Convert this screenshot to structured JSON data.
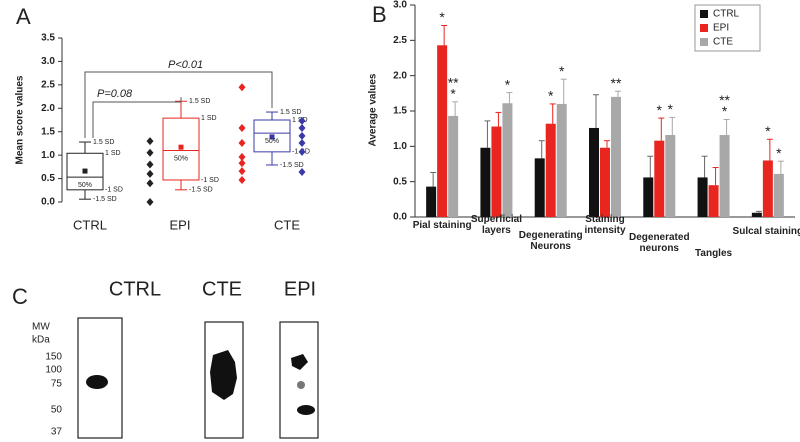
{
  "panels": [
    "A",
    "B",
    "C"
  ],
  "chart_data": [
    {
      "type": "box",
      "ylabel": "Mean score values",
      "ylim": [
        0,
        3.5
      ],
      "yticks": [
        {
          "value": 0,
          "label": "0.0"
        },
        {
          "value": 0.5,
          "label": "0.5"
        },
        {
          "value": 1,
          "label": "1.0"
        },
        {
          "value": 1.5,
          "label": "1.5"
        },
        {
          "value": 2,
          "label": "2.0"
        },
        {
          "value": 2.5,
          "label": "2.5"
        },
        {
          "value": 3,
          "label": "3.0"
        },
        {
          "value": 3.5,
          "label": "3.5"
        }
      ],
      "categories": [
        "CTRL",
        "EPI",
        "CTE"
      ],
      "box_labels": [
        "1.5 SD",
        "1 SD",
        "50%",
        "-1 SD",
        "-1.5 SD"
      ],
      "boxes": [
        {
          "color": "#222222",
          "whisker_high": 1.28,
          "q_high": 1.04,
          "median": 0.53,
          "q_low": 0.26,
          "whisker_low": 0.06,
          "mean": 0.66,
          "points": [
            1.3,
            1.05,
            0.8,
            0.6,
            0.4,
            0.0
          ]
        },
        {
          "color": "#e8251f",
          "whisker_high": 2.15,
          "q_high": 1.79,
          "median": 1.1,
          "q_low": 0.47,
          "whisker_low": 0.26,
          "mean": 1.17,
          "points": [
            2.45,
            1.58,
            1.26,
            0.96,
            0.83,
            0.66,
            0.47
          ]
        },
        {
          "color": "#3a3aa8",
          "whisker_high": 1.92,
          "q_high": 1.75,
          "median": 1.47,
          "q_low": 1.07,
          "whisker_low": 0.79,
          "mean": 1.39,
          "points": [
            1.73,
            1.58,
            1.41,
            1.26,
            1.07,
            0.64
          ]
        }
      ],
      "annotations": [
        "P=0.08",
        "P<0.01"
      ]
    },
    {
      "type": "bar",
      "ylabel": "Average values",
      "ylim": [
        0,
        3
      ],
      "yticks": [
        {
          "value": 0,
          "label": "0.0"
        },
        {
          "value": 0.5,
          "label": "0.5"
        },
        {
          "value": 1,
          "label": "1.0"
        },
        {
          "value": 1.5,
          "label": "1.5"
        },
        {
          "value": 2,
          "label": "2.0"
        },
        {
          "value": 2.5,
          "label": "2.5"
        },
        {
          "value": 3,
          "label": "3.0"
        }
      ],
      "categories": [
        "Pial staining",
        "Superficial layers",
        "Degenerating Neurons",
        "Staining intensity",
        "Degenerated neurons",
        "Tangles",
        "Sulcal staining"
      ],
      "legend": "upper right",
      "series": [
        {
          "name": "CTRL",
          "color": "#111111",
          "values": [
            0.43,
            0.98,
            0.83,
            1.26,
            0.56,
            0.56,
            0.06
          ],
          "errors": [
            0.2,
            0.38,
            0.25,
            0.47,
            0.3,
            0.3,
            0.02
          ],
          "sig": [
            null,
            null,
            null,
            null,
            null,
            null,
            null
          ]
        },
        {
          "name": "EPI",
          "color": "#e8251f",
          "values": [
            2.43,
            1.28,
            1.32,
            0.98,
            1.08,
            0.45,
            0.8
          ],
          "errors": [
            0.28,
            0.2,
            0.28,
            0.1,
            0.32,
            0.25,
            0.3
          ],
          "sig": [
            "*",
            null,
            "*",
            null,
            "*",
            null,
            "*"
          ]
        },
        {
          "name": "CTE",
          "color": "#a8a8a8",
          "values": [
            1.43,
            1.61,
            1.6,
            1.7,
            1.16,
            1.16,
            0.61
          ],
          "errors": [
            0.2,
            0.15,
            0.35,
            0.08,
            0.25,
            0.22,
            0.18
          ],
          "sig": [
            [
              "*",
              "**"
            ],
            "*",
            "*",
            "**",
            "*",
            [
              "*",
              "**"
            ],
            "*"
          ]
        }
      ]
    }
  ],
  "blot": {
    "lanes": [
      "CTRL",
      "CTE",
      "EPI"
    ],
    "mw_label": [
      "MW",
      "kDa"
    ],
    "markers": [
      "150",
      "100",
      "75",
      "50",
      "37"
    ]
  }
}
